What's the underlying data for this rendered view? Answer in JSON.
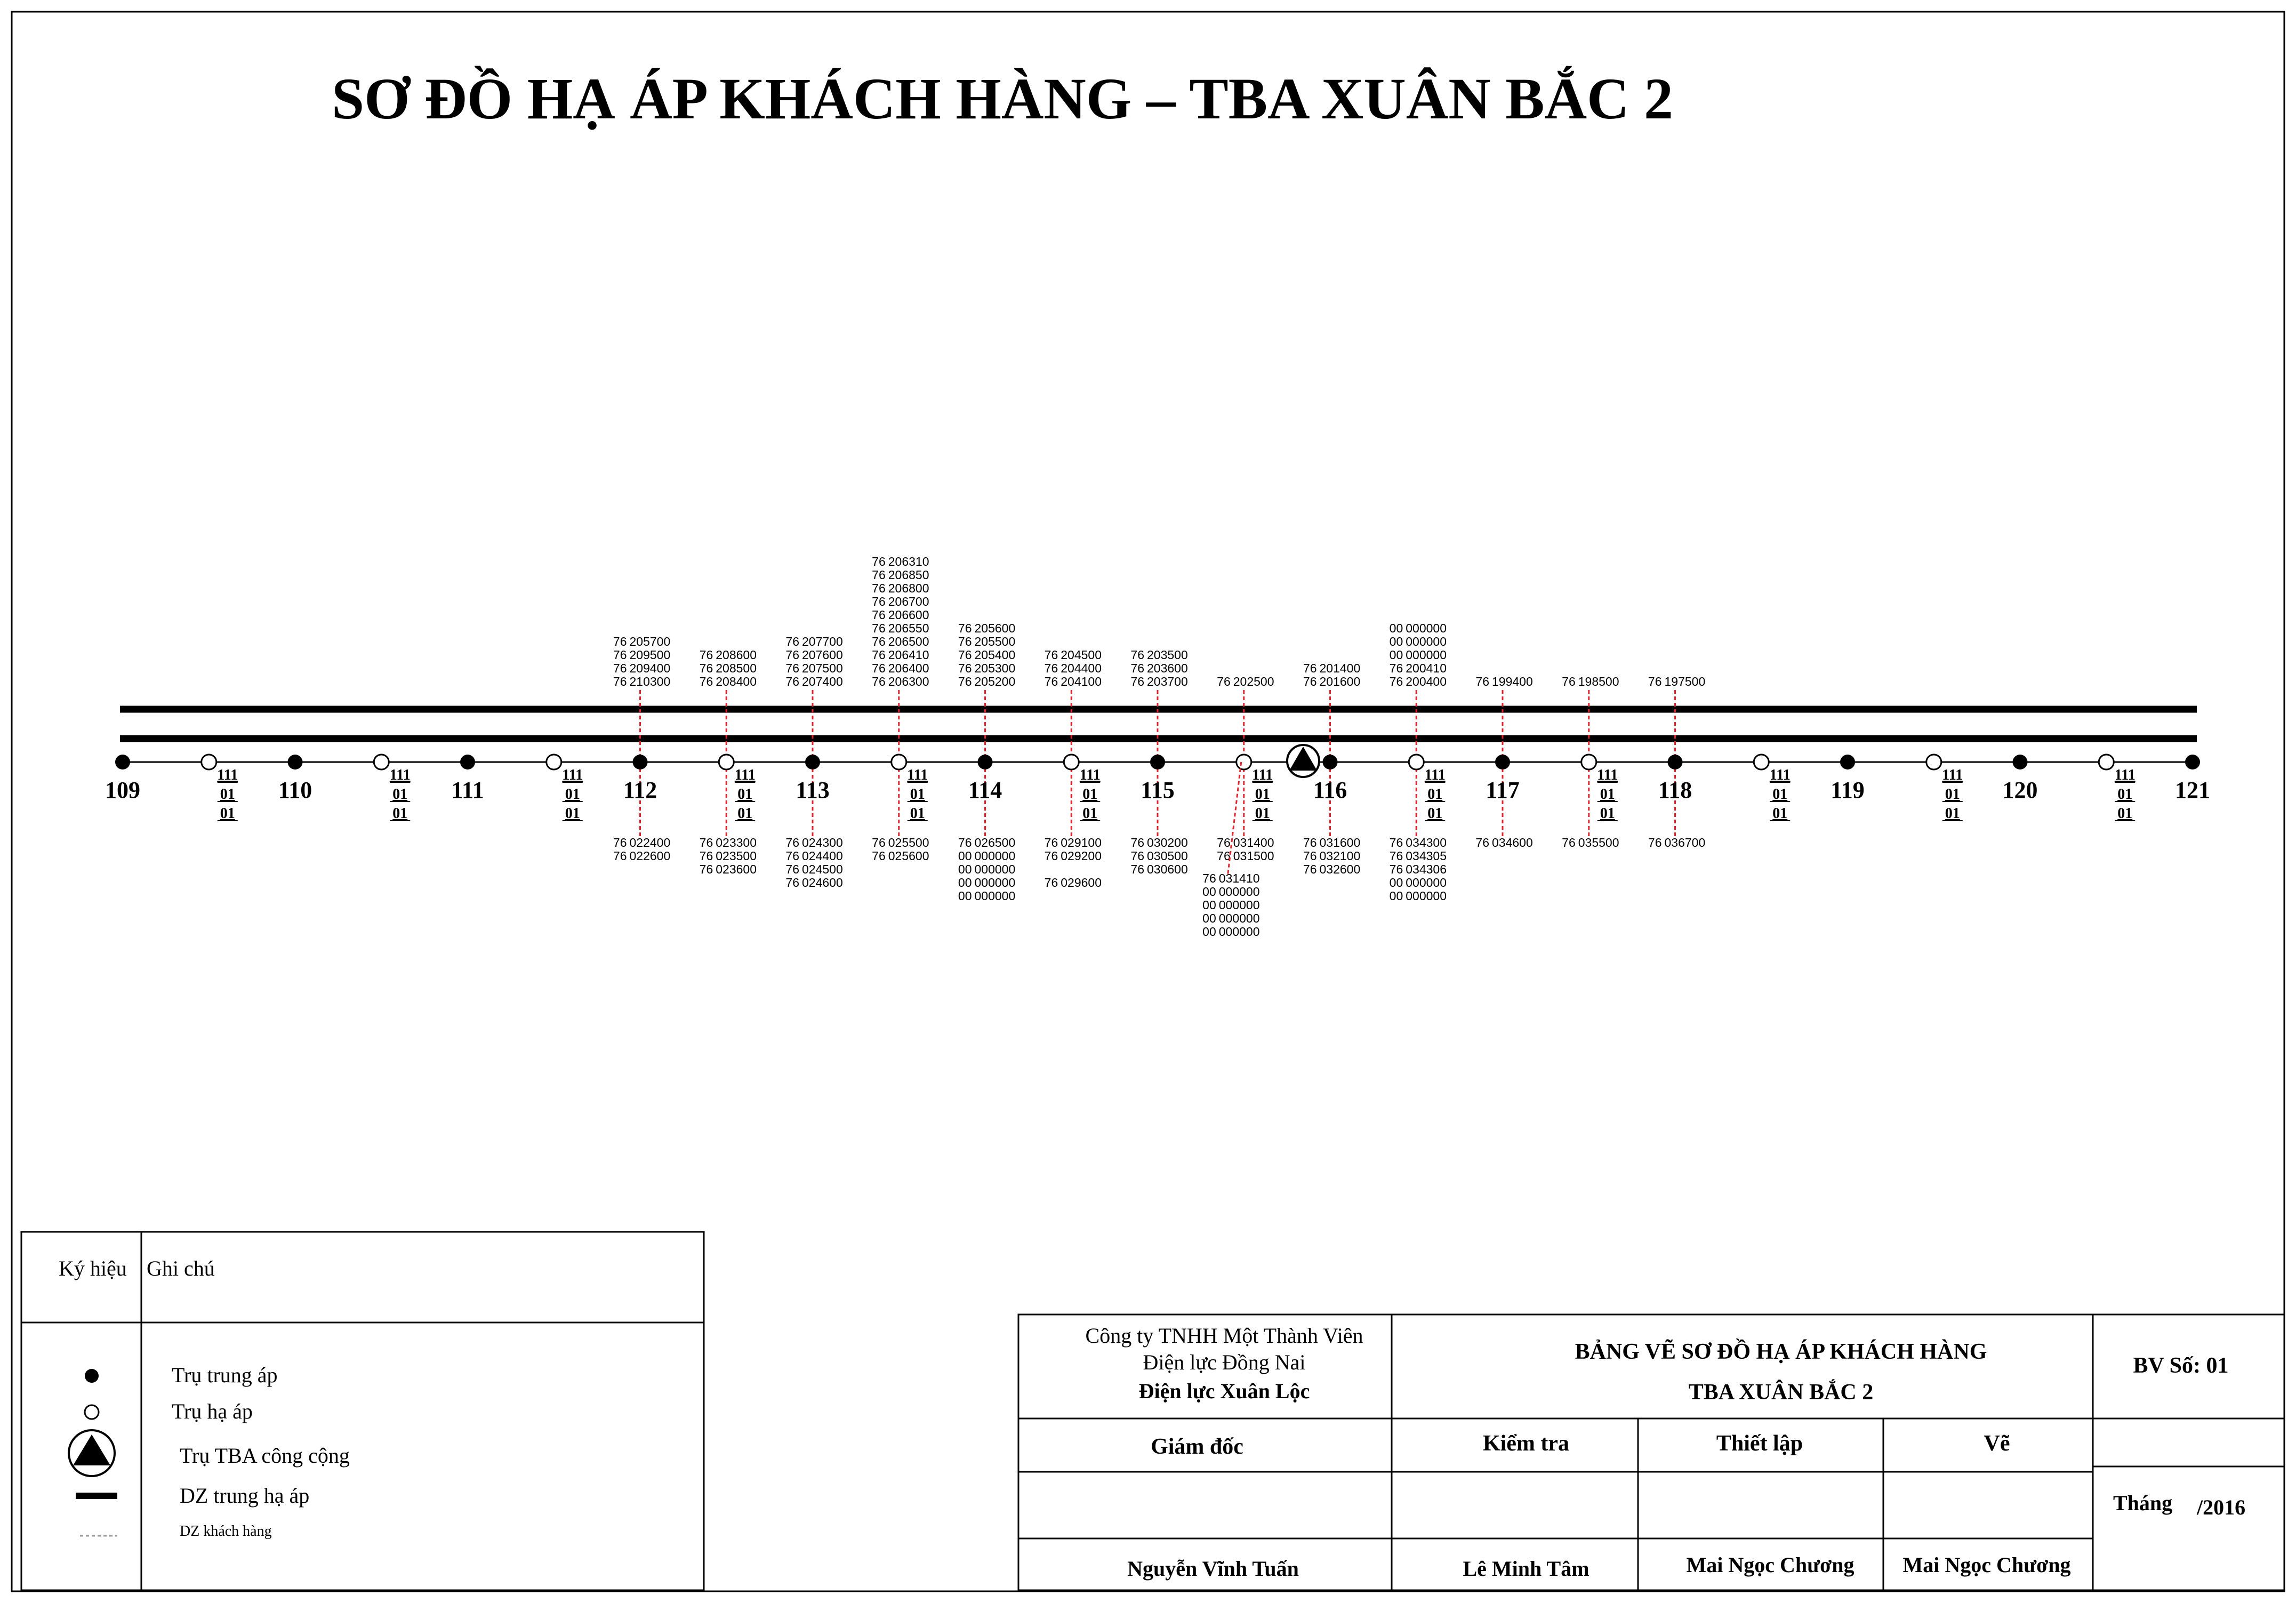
{
  "title": "SƠ ĐỒ HẠ ÁP KHÁCH HÀNG – TBA XUÂN BẮC 2",
  "poles": [
    {
      "label": "109",
      "type": "mv",
      "top": [],
      "bottom": []
    },
    {
      "label": "",
      "type": "lv",
      "code": [
        "111",
        "01",
        "01"
      ],
      "top": [],
      "bottom": []
    },
    {
      "label": "110",
      "type": "mv",
      "top": [],
      "bottom": []
    },
    {
      "label": "",
      "type": "lv",
      "code": [
        "111",
        "01",
        "01"
      ],
      "top": [],
      "bottom": []
    },
    {
      "label": "111",
      "type": "mv",
      "top": [],
      "bottom": []
    },
    {
      "label": "",
      "type": "lv",
      "code": [
        "111",
        "01",
        "01"
      ],
      "top": [],
      "bottom": []
    },
    {
      "label": "112",
      "type": "mv",
      "top": [
        [
          "76",
          "205700"
        ],
        [
          "76",
          "209500"
        ],
        [
          "76",
          "209400"
        ],
        [
          "76",
          "210300"
        ]
      ],
      "bottom": [
        [
          "76",
          "022400"
        ],
        [
          "76",
          "022600"
        ]
      ]
    },
    {
      "label": "",
      "type": "lv",
      "code": [
        "111",
        "01",
        "01"
      ],
      "top": [
        [
          "76",
          "208600"
        ],
        [
          "76",
          "208500"
        ],
        [
          "76",
          "208400"
        ]
      ],
      "bottom": [
        [
          "76",
          "023300"
        ],
        [
          "76",
          "023500"
        ],
        [
          "76",
          "023600"
        ]
      ]
    },
    {
      "label": "113",
      "type": "mv",
      "top": [
        [
          "76",
          "207700"
        ],
        [
          "76",
          "207600"
        ],
        [
          "76",
          "207500"
        ],
        [
          "76",
          "207400"
        ]
      ],
      "bottom": [
        [
          "76",
          "024300"
        ],
        [
          "76",
          "024400"
        ],
        [
          "76",
          "024500"
        ],
        [
          "76",
          "024600"
        ]
      ]
    },
    {
      "label": "",
      "type": "lv",
      "code": [
        "111",
        "01",
        "01"
      ],
      "top": [
        [
          "76",
          "206310"
        ],
        [
          "76",
          "206850"
        ],
        [
          "76",
          "206800"
        ],
        [
          "76",
          "206700"
        ],
        [
          "76",
          "206600"
        ],
        [
          "76",
          "206550"
        ],
        [
          "76",
          "206500"
        ],
        [
          "76",
          "206410"
        ],
        [
          "76",
          "206400"
        ],
        [
          "76",
          "206300"
        ]
      ],
      "bottom": [
        [
          "76",
          "025500"
        ],
        [
          "76",
          "025600"
        ]
      ]
    },
    {
      "label": "114",
      "type": "mv",
      "top": [
        [
          "76",
          "205600"
        ],
        [
          "76",
          "205500"
        ],
        [
          "76",
          "205400"
        ],
        [
          "76",
          "205300"
        ],
        [
          "76",
          "205200"
        ]
      ],
      "bottom": [
        [
          "76",
          "026500"
        ],
        [
          "00",
          "000000"
        ],
        [
          "00",
          "000000"
        ],
        [
          "00",
          "000000"
        ],
        [
          "00",
          "000000"
        ]
      ]
    },
    {
      "label": "",
      "type": "lv",
      "code": [
        "111",
        "01",
        "01"
      ],
      "top": [
        [
          "76",
          "204500"
        ],
        [
          "76",
          "204400"
        ],
        [
          "76",
          "204100"
        ]
      ],
      "bottom": [
        [
          "76",
          "029100"
        ],
        [
          "76",
          "029200"
        ],
        [
          "",
          ""
        ],
        [
          "76",
          "029600"
        ]
      ]
    },
    {
      "label": "115",
      "type": "mv",
      "top": [
        [
          "76",
          "203500"
        ],
        [
          "76",
          "203600"
        ],
        [
          "76",
          "203700"
        ]
      ],
      "bottom": [
        [
          "76",
          "030200"
        ],
        [
          "76",
          "030500"
        ],
        [
          "76",
          "030600"
        ]
      ]
    },
    {
      "label": "",
      "type": "lv",
      "code": [
        "111",
        "01",
        "01"
      ],
      "top": [
        [
          "76",
          "202500"
        ]
      ],
      "bottom": [
        [
          "76",
          "031400"
        ],
        [
          "76",
          "031500"
        ]
      ]
    },
    {
      "label": "116",
      "type": "mv",
      "top": [
        [
          "76",
          "201400"
        ],
        [
          "76",
          "201600"
        ]
      ],
      "bottom": [
        [
          "76",
          "031600"
        ],
        [
          "76",
          "032100"
        ],
        [
          "76",
          "032600"
        ]
      ]
    },
    {
      "label": "",
      "type": "lv",
      "code": [
        "111",
        "01",
        "01"
      ],
      "top": [
        [
          "00",
          "000000"
        ],
        [
          "00",
          "000000"
        ],
        [
          "00",
          "000000"
        ],
        [
          "76",
          "200410"
        ],
        [
          "76",
          "200400"
        ]
      ],
      "bottom": [
        [
          "76",
          "034300"
        ],
        [
          "76",
          "034305"
        ],
        [
          "76",
          "034306"
        ],
        [
          "00",
          "000000"
        ],
        [
          "00",
          "000000"
        ]
      ]
    },
    {
      "label": "117",
      "type": "mv",
      "top": [
        [
          "76",
          "199400"
        ]
      ],
      "bottom": [
        [
          "76",
          "034600"
        ]
      ]
    },
    {
      "label": "",
      "type": "lv",
      "code": [
        "111",
        "01",
        "01"
      ],
      "top": [
        [
          "76",
          "198500"
        ]
      ],
      "bottom": [
        [
          "76",
          "035500"
        ]
      ]
    },
    {
      "label": "118",
      "type": "mv",
      "top": [
        [
          "76",
          "197500"
        ]
      ],
      "bottom": [
        [
          "76",
          "036700"
        ]
      ]
    },
    {
      "label": "",
      "type": "lv",
      "code": [
        "111",
        "01",
        "01"
      ],
      "top": [],
      "bottom": []
    },
    {
      "label": "119",
      "type": "mv",
      "top": [],
      "bottom": []
    },
    {
      "label": "",
      "type": "lv",
      "code": [
        "111",
        "01",
        "01"
      ],
      "top": [],
      "bottom": []
    },
    {
      "label": "120",
      "type": "mv",
      "top": [],
      "bottom": []
    },
    {
      "label": "",
      "type": "lv",
      "code": [
        "111",
        "01",
        "01"
      ],
      "top": [],
      "bottom": []
    },
    {
      "label": "121",
      "type": "mv",
      "top": [],
      "bottom": []
    }
  ],
  "extra_group": [
    [
      "76",
      "031410"
    ],
    [
      "00",
      "000000"
    ],
    [
      "00",
      "000000"
    ],
    [
      "00",
      "000000"
    ],
    [
      "00",
      "000000"
    ]
  ],
  "legend": {
    "header_symbol": "Ký hiệu",
    "header_note": "Ghi chú",
    "items": [
      {
        "symbol": "mv-pole-icon",
        "text": "Trụ trung áp"
      },
      {
        "symbol": "lv-pole-icon",
        "text": "Trụ hạ áp"
      },
      {
        "symbol": "substation-icon",
        "text": "Trụ TBA công cộng"
      },
      {
        "symbol": "mv-lv-line-icon",
        "text": "DZ trung hạ áp"
      },
      {
        "symbol": "customer-line-icon",
        "text": "DZ khách hàng"
      }
    ]
  },
  "titleblock": {
    "company": [
      "Công ty TNHH Một Thành Viên",
      "Điện lực Đồng Nai",
      "Điện lực Xuân Lộc"
    ],
    "drawing_title": [
      "BẢNG VẼ SƠ ĐỒ HẠ ÁP KHÁCH HÀNG",
      "TBA XUÂN BẮC 2"
    ],
    "sheet_no": "BV Số: 01",
    "roles": [
      "Giám đốc",
      "Kiểm tra",
      "Thiết lập",
      "Vẽ"
    ],
    "names": [
      "Nguyễn Vĩnh Tuấn",
      "Lê Minh Tâm",
      "Mai Ngọc Chương",
      "Mai Ngọc Chương"
    ],
    "month_label": "Tháng",
    "year": "/2016"
  },
  "colors": {
    "line": "#000000",
    "customer_line": "#e8202a",
    "text": "#000000"
  }
}
